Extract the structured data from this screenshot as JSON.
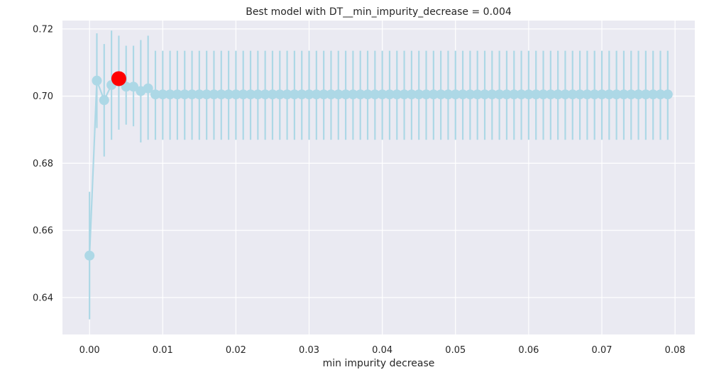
{
  "chart_data": {
    "type": "line",
    "title": "Best model with DT__min_impurity_decrease = 0.004",
    "xlabel": "min impurity decrease",
    "ylabel": "",
    "xlim": [
      -0.0037,
      0.0827
    ],
    "ylim": [
      0.629,
      0.7225
    ],
    "grid": true,
    "x_ticks": [
      "0.00",
      "0.01",
      "0.02",
      "0.03",
      "0.04",
      "0.05",
      "0.06",
      "0.07",
      "0.08"
    ],
    "x_tick_values": [
      0.0,
      0.01,
      0.02,
      0.03,
      0.04,
      0.05,
      0.06,
      0.07,
      0.08
    ],
    "y_ticks": [
      "0.64",
      "0.66",
      "0.68",
      "0.70",
      "0.72"
    ],
    "y_tick_values": [
      0.64,
      0.66,
      0.68,
      0.7,
      0.72
    ],
    "colors": {
      "series": "#add8e6",
      "best": "#ff0000",
      "background": "#eaeaf2",
      "grid": "#ffffff"
    },
    "series": [
      {
        "x_start": 0.0,
        "x_step": 0.001,
        "values": [
          0.6525,
          0.7046,
          0.6988,
          0.7033,
          0.7052,
          0.7028,
          0.7028,
          0.7015,
          0.7023,
          0.7005,
          0.7005,
          0.7005,
          0.7005,
          0.7005,
          0.7005,
          0.7005,
          0.7005,
          0.7005,
          0.7005,
          0.7005,
          0.7005,
          0.7005,
          0.7005,
          0.7005,
          0.7005,
          0.7005,
          0.7005,
          0.7005,
          0.7005,
          0.7005,
          0.7005,
          0.7005,
          0.7005,
          0.7005,
          0.7005,
          0.7005,
          0.7005,
          0.7005,
          0.7005,
          0.7005,
          0.7005,
          0.7005,
          0.7005,
          0.7005,
          0.7005,
          0.7005,
          0.7005,
          0.7005,
          0.7005,
          0.7005,
          0.7005,
          0.7005,
          0.7005,
          0.7005,
          0.7005,
          0.7005,
          0.7005,
          0.7005,
          0.7005,
          0.7005,
          0.7005,
          0.7005,
          0.7005,
          0.7005,
          0.7005,
          0.7005,
          0.7005,
          0.7005,
          0.7005,
          0.7005,
          0.7005,
          0.7005,
          0.7005,
          0.7005,
          0.7005,
          0.7005,
          0.7005,
          0.7005,
          0.7005,
          0.7005
        ],
        "error_low": [
          0.6335,
          0.6905,
          0.682,
          0.687,
          0.69,
          0.6915,
          0.691,
          0.6862,
          0.687,
          0.687,
          0.687,
          0.687,
          0.687,
          0.687,
          0.687,
          0.687,
          0.687,
          0.687,
          0.687,
          0.687,
          0.687,
          0.687,
          0.687,
          0.687,
          0.687,
          0.687,
          0.687,
          0.687,
          0.687,
          0.687,
          0.687,
          0.687,
          0.687,
          0.687,
          0.687,
          0.687,
          0.687,
          0.687,
          0.687,
          0.687,
          0.687,
          0.687,
          0.687,
          0.687,
          0.687,
          0.687,
          0.687,
          0.687,
          0.687,
          0.687,
          0.687,
          0.687,
          0.687,
          0.687,
          0.687,
          0.687,
          0.687,
          0.687,
          0.687,
          0.687,
          0.687,
          0.687,
          0.687,
          0.687,
          0.687,
          0.687,
          0.687,
          0.687,
          0.687,
          0.687,
          0.687,
          0.687,
          0.687,
          0.687,
          0.687,
          0.687,
          0.687,
          0.687,
          0.687,
          0.687
        ],
        "error_high": [
          0.6715,
          0.7187,
          0.7155,
          0.7195,
          0.718,
          0.715,
          0.715,
          0.7167,
          0.718,
          0.7135,
          0.7135,
          0.7135,
          0.7135,
          0.7135,
          0.7135,
          0.7135,
          0.7135,
          0.7135,
          0.7135,
          0.7135,
          0.7135,
          0.7135,
          0.7135,
          0.7135,
          0.7135,
          0.7135,
          0.7135,
          0.7135,
          0.7135,
          0.7135,
          0.7135,
          0.7135,
          0.7135,
          0.7135,
          0.7135,
          0.7135,
          0.7135,
          0.7135,
          0.7135,
          0.7135,
          0.7135,
          0.7135,
          0.7135,
          0.7135,
          0.7135,
          0.7135,
          0.7135,
          0.7135,
          0.7135,
          0.7135,
          0.7135,
          0.7135,
          0.7135,
          0.7135,
          0.7135,
          0.7135,
          0.7135,
          0.7135,
          0.7135,
          0.7135,
          0.7135,
          0.7135,
          0.7135,
          0.7135,
          0.7135,
          0.7135,
          0.7135,
          0.7135,
          0.7135,
          0.7135,
          0.7135,
          0.7135,
          0.7135,
          0.7135,
          0.7135,
          0.7135,
          0.7135,
          0.7135,
          0.7135,
          0.7135
        ]
      }
    ],
    "best_point": {
      "x": 0.004,
      "y": 0.7052
    }
  }
}
